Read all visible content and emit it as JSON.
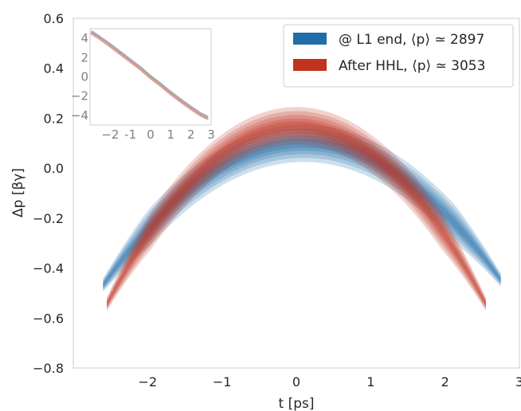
{
  "chart_data": {
    "type": "contour",
    "title": "",
    "xlabel": "t [ps]",
    "ylabel": "Δp [βγ]",
    "xlim": [
      -3.0,
      3.0
    ],
    "ylim": [
      -0.8,
      0.6
    ],
    "xticks": [
      "−2",
      "−1",
      "0",
      "1",
      "2",
      "3"
    ],
    "xtick_values": [
      -2,
      -1,
      0,
      1,
      2,
      3
    ],
    "yticks": [
      "−0.8",
      "−0.6",
      "−0.4",
      "−0.2",
      "0.0",
      "0.2",
      "0.4",
      "0.6"
    ],
    "ytick_values": [
      -0.8,
      -0.6,
      -0.4,
      -0.2,
      0.0,
      0.2,
      0.4,
      0.6
    ],
    "grid": false,
    "legend_position": "top-right",
    "series": [
      {
        "name": "@ L1 end, ⟨p⟩ ≃ 2897",
        "color": "#1f6ea8",
        "peak_t": 0.1,
        "peak_dp": 0.1,
        "curvature": -0.078,
        "t_range": [
          -2.6,
          2.75
        ],
        "spread": 0.075
      },
      {
        "name": "After HHL, ⟨p⟩ ≃ 3053",
        "color": "#c1321f",
        "peak_t": 0.0,
        "peak_dp": 0.17,
        "curvature": -0.11,
        "t_range": [
          -2.55,
          2.55
        ],
        "spread": 0.075
      }
    ],
    "inset": {
      "type": "scatter",
      "xlim": [
        -3.0,
        3.0
      ],
      "ylim": [
        -5.0,
        5.0
      ],
      "xticks": [
        "−2",
        "-1",
        "0",
        "1",
        "2",
        "3"
      ],
      "xtick_values": [
        -2,
        -1,
        0,
        1,
        2,
        3
      ],
      "yticks": [
        "4",
        "2",
        "0",
        "−2",
        "−4"
      ],
      "ytick_values": [
        4,
        2,
        0,
        -2,
        -4
      ],
      "points": [
        [
          -2.9,
          4.6
        ],
        [
          -2.5,
          4.05
        ],
        [
          -2.0,
          3.3
        ],
        [
          -1.5,
          2.5
        ],
        [
          -1.0,
          1.7
        ],
        [
          -0.5,
          0.9
        ],
        [
          0.0,
          0.0
        ],
        [
          0.5,
          -0.8
        ],
        [
          1.0,
          -1.65
        ],
        [
          1.5,
          -2.45
        ],
        [
          2.0,
          -3.2
        ],
        [
          2.5,
          -3.9
        ],
        [
          2.8,
          -4.2
        ]
      ],
      "series_colors": [
        "#8a9fb0",
        "#d48a7c"
      ]
    }
  }
}
